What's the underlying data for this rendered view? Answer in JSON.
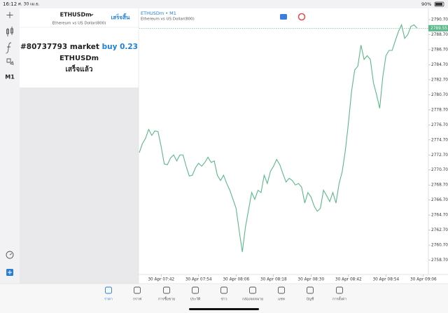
{
  "status_bar": {
    "time": "16:12",
    "date": "ศ. 30 เม.ย.",
    "battery": "90%"
  },
  "sidebar": {
    "timeframe": "M1"
  },
  "order_panel": {
    "symbol": "ETHUSDm",
    "description": "Ethereum vs US Dollar(800)",
    "done": "เสร็จสิ้น",
    "ticket": "#80737793 market",
    "side": "buy 0.23",
    "order_symbol": "ETHUSDm",
    "status": "เสร็จแล้ว"
  },
  "chart_data": {
    "type": "line",
    "title": "ETHUSDm • M1",
    "subtitle": "Ethereum vs US Dollar(800)",
    "color": "#5cb88a",
    "categories": [
      null,
      null,
      null,
      null,
      null,
      null,
      null,
      "30 Apr 07:42",
      null,
      null,
      null,
      null,
      null,
      null,
      null,
      null,
      null,
      null,
      null,
      "30 Apr 07:54",
      null,
      null,
      null,
      null,
      null,
      null,
      null,
      null,
      null,
      null,
      null,
      "30 Apr 08:06",
      null,
      null,
      null,
      null,
      null,
      null,
      null,
      null,
      null,
      null,
      null,
      "30 Apr 08:18",
      null,
      null,
      null,
      null,
      null,
      null,
      null,
      null,
      null,
      null,
      null,
      "30 Apr 08:30",
      null,
      null,
      null,
      null,
      null,
      null,
      null,
      null,
      null,
      null,
      null,
      "30 Apr 08:42",
      null,
      null,
      null,
      null,
      null,
      null,
      null,
      null,
      null,
      null,
      null,
      "30 Apr 08:54",
      null,
      null,
      null,
      null,
      null,
      null,
      null,
      null,
      null,
      null,
      null,
      "30 Apr 09:06"
    ],
    "values": [
      2773.0,
      2774.2,
      2774.9,
      2776.1,
      2775.3,
      2775.9,
      2775.8,
      2773.8,
      2771.5,
      2771.4,
      2772.3,
      2772.7,
      2771.9,
      2772.7,
      2772.7,
      2771.2,
      2769.9,
      2770.0,
      2771.0,
      2771.6,
      2771.2,
      2771.7,
      2772.4,
      2771.7,
      2771.9,
      2770.0,
      2769.3,
      2770.0,
      2768.9,
      2768.0,
      2766.8,
      2765.6,
      2762.6,
      2759.8,
      2763.1,
      2765.4,
      2767.7,
      2766.8,
      2768.0,
      2767.7,
      2770.0,
      2768.9,
      2770.5,
      2771.2,
      2772.1,
      2771.4,
      2770.2,
      2769.1,
      2769.6,
      2769.3,
      2768.7,
      2768.9,
      2768.4,
      2766.3,
      2767.7,
      2767.1,
      2765.9,
      2765.2,
      2765.6,
      2768.0,
      2767.3,
      2766.5,
      2767.7,
      2766.3,
      2768.9,
      2770.5,
      2773.3,
      2777.0,
      2781.2,
      2784.0,
      2784.5,
      2787.3,
      2785.4,
      2785.9,
      2785.4,
      2782.3,
      2780.7,
      2778.9,
      2783.1,
      2785.9,
      2786.6,
      2786.6,
      2787.9,
      2789.1,
      2790.0,
      2788.2,
      2788.7,
      2789.8,
      2790.0,
      2789.55,
      null,
      null
    ],
    "ylim": [
      2756.8,
      2792.0
    ],
    "yticks": [
      {
        "value": 2758.7,
        "label": "2758.70"
      },
      {
        "value": 2760.7,
        "label": "2760.70"
      },
      {
        "value": 2762.7,
        "label": "2762.70"
      },
      {
        "value": 2764.7,
        "label": "2764.70"
      },
      {
        "value": 2766.7,
        "label": "2766.70"
      },
      {
        "value": 2768.7,
        "label": "2768.70"
      },
      {
        "value": 2770.7,
        "label": "2770.70"
      },
      {
        "value": 2772.7,
        "label": "2772.70"
      },
      {
        "value": 2774.7,
        "label": "2774.70"
      },
      {
        "value": 2776.7,
        "label": "2776.70"
      },
      {
        "value": 2778.7,
        "label": "2778.70"
      },
      {
        "value": 2780.7,
        "label": "2780.70"
      },
      {
        "value": 2782.7,
        "label": "2782.70"
      },
      {
        "value": 2784.7,
        "label": "2784.70"
      },
      {
        "value": 2786.7,
        "label": "2786.70"
      },
      {
        "value": 2788.7,
        "label": "2788.70"
      },
      {
        "value": 2790.7,
        "label": "2790.70"
      }
    ],
    "last_price": {
      "value": 2789.55,
      "label": "2789.55"
    }
  },
  "tabs": [
    "ราคา",
    "กราฟ",
    "การซื้อขาย",
    "ประวัติ",
    "ข่าว",
    "กล่องจดหมาย",
    "แชท",
    "บัญชี",
    "การตั้งค่า"
  ]
}
